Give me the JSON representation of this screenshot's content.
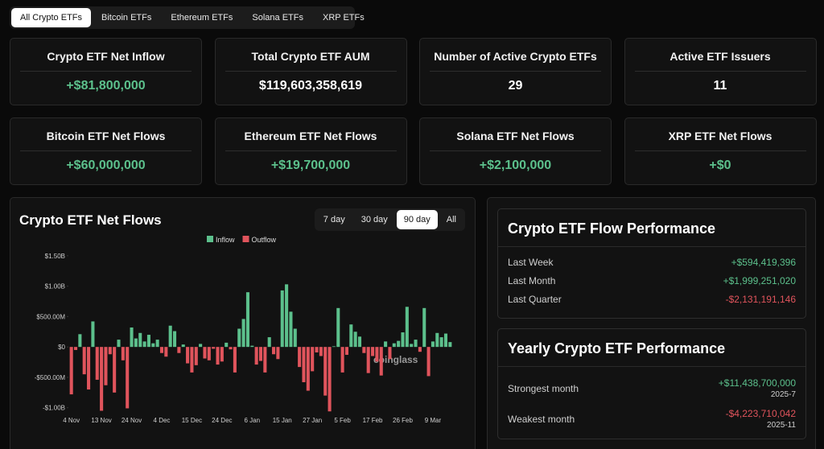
{
  "tabs": [
    "All Crypto ETFs",
    "Bitcoin ETFs",
    "Ethereum ETFs",
    "Solana ETFs",
    "XRP ETFs"
  ],
  "active_tab": 0,
  "stats": [
    {
      "label": "Crypto ETF Net Inflow",
      "value": "+$81,800,000",
      "color": "#5cc08c"
    },
    {
      "label": "Total Crypto ETF AUM",
      "value": "$119,603,358,619",
      "color": "#ffffff"
    },
    {
      "label": "Number of Active Crypto ETFs",
      "value": "29",
      "color": "#ffffff"
    },
    {
      "label": "Active ETF Issuers",
      "value": "11",
      "color": "#ffffff"
    },
    {
      "label": "Bitcoin ETF Net Flows",
      "value": "+$60,000,000",
      "color": "#5cc08c"
    },
    {
      "label": "Ethereum ETF Net Flows",
      "value": "+$19,700,000",
      "color": "#5cc08c"
    },
    {
      "label": "Solana ETF Net Flows",
      "value": "+$2,100,000",
      "color": "#5cc08c"
    },
    {
      "label": "XRP ETF Net Flows",
      "value": "+$0",
      "color": "#5cc08c"
    }
  ],
  "chart_data": {
    "type": "bar",
    "title": "Crypto ETF Net Flows",
    "range_buttons": [
      "7 day",
      "30 day",
      "90 day",
      "All"
    ],
    "active_range": 2,
    "legend": [
      {
        "name": "Inflow",
        "color": "#5cc08c"
      },
      {
        "name": "Outflow",
        "color": "#e0545c"
      }
    ],
    "watermark": "coinglass",
    "categories": [
      "4 Nov",
      null,
      null,
      null,
      null,
      null,
      null,
      "13 Nov",
      null,
      null,
      null,
      null,
      null,
      null,
      "24 Nov",
      null,
      null,
      null,
      null,
      null,
      null,
      "4 Dec",
      null,
      null,
      null,
      null,
      null,
      null,
      "15 Dec",
      null,
      null,
      null,
      null,
      null,
      null,
      "24 Dec",
      null,
      null,
      null,
      null,
      null,
      null,
      "6 Jan",
      null,
      null,
      null,
      null,
      null,
      null,
      "15 Jan",
      null,
      null,
      null,
      null,
      null,
      null,
      "27 Jan",
      null,
      null,
      null,
      null,
      null,
      null,
      "5 Feb",
      null,
      null,
      null,
      null,
      null,
      null,
      "17 Feb",
      null,
      null,
      null,
      null,
      null,
      null,
      "26 Feb",
      null,
      null,
      null,
      null,
      null,
      null,
      "9 Mar",
      null,
      null,
      null,
      null
    ],
    "values": [
      -780000000.0,
      -50000000.0,
      210000000.0,
      -450000000.0,
      -700000000.0,
      420000000.0,
      -540000000.0,
      -1050000000.0,
      -630000000.0,
      -120000000.0,
      -750000000.0,
      120000000.0,
      -220000000.0,
      -1010000000.0,
      320000000.0,
      140000000.0,
      230000000.0,
      90000000.0,
      200000000.0,
      60000000.0,
      120000000.0,
      -100000000.0,
      -160000000.0,
      350000000.0,
      260000000.0,
      -100000000.0,
      40000000.0,
      -270000000.0,
      -420000000.0,
      -300000000.0,
      50000000.0,
      -190000000.0,
      -220000000.0,
      -30000000.0,
      -290000000.0,
      -240000000.0,
      70000000.0,
      -40000000.0,
      -420000000.0,
      300000000.0,
      460000000.0,
      900000000.0,
      20000000.0,
      -290000000.0,
      -230000000.0,
      -420000000.0,
      160000000.0,
      -120000000.0,
      -200000000.0,
      930000000.0,
      1030000000.0,
      580000000.0,
      300000000.0,
      -330000000.0,
      -580000000.0,
      -720000000.0,
      -400000000.0,
      -90000000.0,
      -150000000.0,
      -800000000.0,
      -1060000000.0,
      10000000.0,
      640000000.0,
      -420000000.0,
      -130000000.0,
      370000000.0,
      250000000.0,
      170000000.0,
      -100000000.0,
      -430000000.0,
      -150000000.0,
      -240000000.0,
      -470000000.0,
      90000000.0,
      -200000000.0,
      60000000.0,
      100000000.0,
      240000000.0,
      660000000.0,
      50000000.0,
      120000000.0,
      -80000000.0,
      640000000.0,
      -480000000.0,
      90000000.0,
      230000000.0,
      160000000.0,
      220000000.0,
      80000000.0
    ],
    "ylim": [
      -1070000000.0,
      1670000000.0
    ],
    "yticks": [
      {
        "value": 1500000000.0,
        "label": "$1.50B"
      },
      {
        "value": 1000000000.0,
        "label": "$1.00B"
      },
      {
        "value": 500000000.0,
        "label": "$500.00M"
      },
      {
        "value": 0,
        "label": "$0"
      },
      {
        "value": -500000000.0,
        "label": "-$500.00M"
      },
      {
        "value": -1000000000.0,
        "label": "-$1.00B"
      }
    ],
    "grid": false
  },
  "flow_performance": {
    "title": "Crypto ETF Flow Performance",
    "rows": [
      {
        "label": "Last Week",
        "value": "+$594,419,396",
        "color": "#5cc08c"
      },
      {
        "label": "Last Month",
        "value": "+$1,999,251,020",
        "color": "#5cc08c"
      },
      {
        "label": "Last Quarter",
        "value": "-$2,131,191,146",
        "color": "#e0545c"
      }
    ]
  },
  "yearly_performance": {
    "title": "Yearly Crypto ETF Performance",
    "rows": [
      {
        "label": "Strongest month",
        "value": "+$11,438,700,000",
        "date": "2025-7",
        "color": "#5cc08c"
      },
      {
        "label": "Weakest month",
        "value": "-$4,223,710,042",
        "date": "2025-11",
        "color": "#e0545c"
      }
    ]
  }
}
